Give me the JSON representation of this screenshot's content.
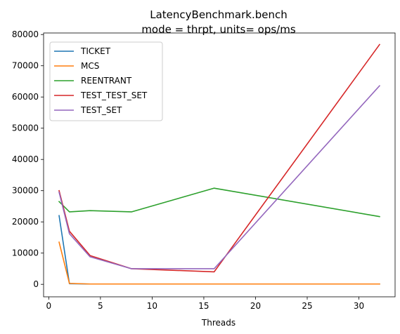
{
  "chart_data": {
    "type": "line",
    "title_line1": "LatencyBenchmark.bench",
    "title_line2": "mode = thrpt, units= ops/ms",
    "xlabel": "Threads",
    "ylabel": "",
    "xlim": [
      -0.5,
      33.5
    ],
    "ylim": [
      -4000,
      80500
    ],
    "xticks": [
      0,
      5,
      10,
      15,
      20,
      25,
      30
    ],
    "yticks": [
      0,
      10000,
      20000,
      30000,
      40000,
      50000,
      60000,
      70000,
      80000
    ],
    "grid": false,
    "legend_position": "upper-left",
    "series": [
      {
        "name": "TICKET",
        "color": "#1f77b4",
        "x": [
          1,
          2,
          4,
          8,
          16,
          32
        ],
        "values": [
          22000,
          200,
          100,
          100,
          100,
          100
        ]
      },
      {
        "name": "MCS",
        "color": "#ff7f0e",
        "x": [
          1,
          2,
          4,
          8,
          16,
          32
        ],
        "values": [
          13500,
          300,
          100,
          100,
          100,
          100
        ]
      },
      {
        "name": "REENTRANT",
        "color": "#2ca02c",
        "x": [
          1,
          2,
          4,
          8,
          16,
          32
        ],
        "values": [
          26500,
          23200,
          23600,
          23200,
          30800,
          21700
        ]
      },
      {
        "name": "TEST_TEST_SET",
        "color": "#d62728",
        "x": [
          1,
          2,
          4,
          8,
          16,
          32
        ],
        "values": [
          30000,
          17000,
          9200,
          5000,
          4000,
          76800
        ]
      },
      {
        "name": "TEST_SET",
        "color": "#9467bd",
        "x": [
          1,
          2,
          4,
          8,
          16,
          32
        ],
        "values": [
          29500,
          16200,
          8800,
          5000,
          5000,
          63600
        ]
      }
    ]
  }
}
